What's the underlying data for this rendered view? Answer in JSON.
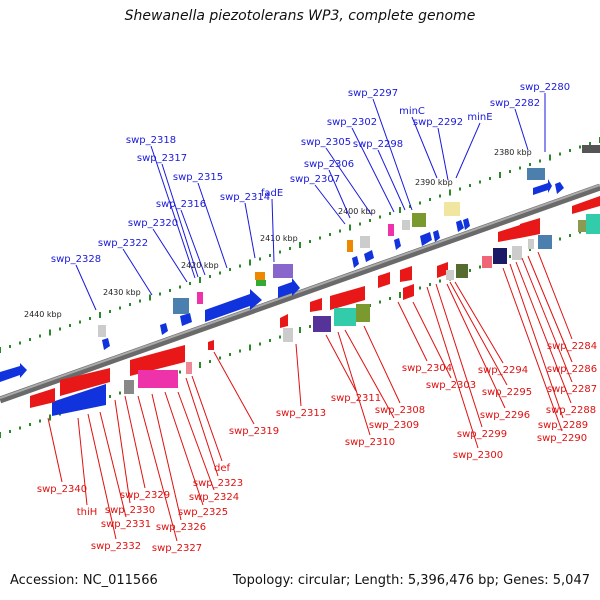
{
  "title": "Shewanella piezotolerans WP3, complete genome",
  "footer": {
    "accession": "Accession: NC_011566",
    "summary": "Topology: circular; Length: 5,396,476 bp; Genes: 5,047"
  },
  "scale_labels": [
    "2380 kbp",
    "2390 kbp",
    "2400 kbp",
    "2410 kbp",
    "2420 kbp",
    "2430 kbp",
    "2440 kbp"
  ],
  "colors": {
    "forward_label": "#1a1adb",
    "reverse_label": "#e01010",
    "forward_gene": "#1133dd",
    "reverse_gene": "#e81818",
    "tick": "#2a8a2a",
    "backbone": "#7a7a7a"
  },
  "top_labels": [
    "swp_2280",
    "swp_2282",
    "minE",
    "minC",
    "swp_2292",
    "swp_2297",
    "swp_2302",
    "swp_2298",
    "swp_2305",
    "swp_2306",
    "swp_2307",
    "fadE",
    "swp_2314",
    "swp_2315",
    "swp_2316",
    "swp_2317",
    "swp_2318",
    "swp_2320",
    "swp_2322",
    "swp_2328"
  ],
  "bottom_labels": [
    "swp_2284",
    "swp_2286",
    "swp_2287",
    "swp_2288",
    "swp_2289",
    "swp_2290",
    "swp_2294",
    "swp_2295",
    "swp_2296",
    "swp_2299",
    "swp_2300",
    "swp_2303",
    "swp_2304",
    "swp_2308",
    "swp_2309",
    "swp_2310",
    "swp_2311",
    "swp_2313",
    "swp_2319",
    "def",
    "swp_2323",
    "swp_2324",
    "swp_2325",
    "swp_2326",
    "swp_2327",
    "swp_2329",
    "swp_2330",
    "swp_2331",
    "swp_2332",
    "thiH",
    "swp_2340"
  ]
}
